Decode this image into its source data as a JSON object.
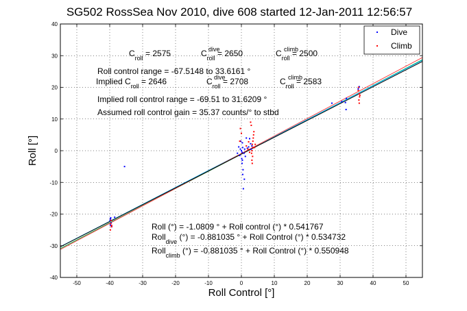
{
  "chart_data": {
    "type": "scatter",
    "title": "SG502 RossSea Nov 2010, dive 608 started 12-Jan-2011 12:56:57",
    "xlabel": "Roll Control [°]",
    "ylabel": "Roll [°]",
    "xlim": [
      -55,
      55
    ],
    "ylim": [
      -40,
      40
    ],
    "xticks": [
      -50,
      -40,
      -30,
      -20,
      -10,
      0,
      10,
      20,
      30,
      40,
      50
    ],
    "yticks": [
      -40,
      -30,
      -20,
      -10,
      0,
      10,
      20,
      30,
      40
    ],
    "grid": true,
    "legend": {
      "placement": "top-right",
      "entries": [
        {
          "label": "Dive",
          "color": "#0000ff"
        },
        {
          "label": "Climb",
          "color": "#ff0000"
        }
      ]
    },
    "series": [
      {
        "name": "Dive",
        "color": "#0000ff",
        "points": [
          [
            -39.8,
            -21.5
          ],
          [
            -39.6,
            -22.8
          ],
          [
            -39.8,
            -23.5
          ],
          [
            -39.4,
            -24.0
          ],
          [
            -39.9,
            -22.0
          ],
          [
            -39.7,
            -21.2
          ],
          [
            -38.5,
            -21.0
          ],
          [
            -35.5,
            -5.0
          ],
          [
            0.0,
            0.0
          ],
          [
            0.2,
            -0.5
          ],
          [
            -0.3,
            0.5
          ],
          [
            0.4,
            1.0
          ],
          [
            -0.5,
            -1.5
          ],
          [
            0.1,
            -2.5
          ],
          [
            0.3,
            2.5
          ],
          [
            0.2,
            -4.0
          ],
          [
            0.5,
            -6.0
          ],
          [
            0.6,
            -12.0
          ],
          [
            0.3,
            -3.0
          ],
          [
            -0.2,
            3.0
          ],
          [
            1.0,
            0.5
          ],
          [
            0.8,
            -0.8
          ],
          [
            1.5,
            4.0
          ],
          [
            1.8,
            0.8
          ],
          [
            2.2,
            1.2
          ],
          [
            2.8,
            2.2
          ],
          [
            3.0,
            0.5
          ],
          [
            3.2,
            1.5
          ],
          [
            2.5,
            3.8
          ],
          [
            -1.2,
            -0.8
          ],
          [
            -0.8,
            1.2
          ],
          [
            1.2,
            -1.8
          ],
          [
            0.4,
            -7.5
          ],
          [
            0.9,
            -9.0
          ],
          [
            31.8,
            13.0
          ],
          [
            31.6,
            15.2
          ],
          [
            31.9,
            16.5
          ],
          [
            30.5,
            15.5
          ],
          [
            27.5,
            15.0
          ],
          [
            35.5,
            19.5
          ],
          [
            35.8,
            20.2
          ]
        ]
      },
      {
        "name": "Climb",
        "color": "#ff0000",
        "points": [
          [
            -39.7,
            -23.0
          ],
          [
            -39.5,
            -24.0
          ],
          [
            -39.8,
            -25.0
          ],
          [
            -39.6,
            -22.0
          ],
          [
            -39.4,
            -23.6
          ],
          [
            3.2,
            0.0
          ],
          [
            3.4,
            1.0
          ],
          [
            3.3,
            2.0
          ],
          [
            3.1,
            -0.8
          ],
          [
            3.5,
            3.0
          ],
          [
            3.6,
            4.0
          ],
          [
            3.7,
            5.0
          ],
          [
            3.8,
            6.0
          ],
          [
            3.4,
            -1.8
          ],
          [
            3.2,
            -3.0
          ],
          [
            3.3,
            -4.0
          ],
          [
            3.0,
            8.0
          ],
          [
            2.8,
            9.0
          ],
          [
            2.5,
            -0.5
          ],
          [
            2.0,
            0.5
          ],
          [
            1.5,
            1.5
          ],
          [
            4.0,
            1.0
          ],
          [
            4.2,
            2.0
          ],
          [
            -0.5,
            3.0
          ],
          [
            -0.3,
            7.0
          ],
          [
            0.0,
            5.5
          ],
          [
            2.2,
            2.8
          ],
          [
            35.6,
            20.0
          ],
          [
            35.8,
            18.0
          ],
          [
            35.9,
            17.0
          ],
          [
            35.7,
            16.0
          ],
          [
            35.5,
            19.0
          ],
          [
            35.8,
            15.0
          ],
          [
            36.0,
            17.5
          ]
        ]
      }
    ],
    "fit_lines": [
      {
        "label": "Roll (°) = -1.0809 ° + Roll control (°) * 0.541767",
        "intercept": -1.0809,
        "slope": 0.541767,
        "color": "#00aa44"
      },
      {
        "label": "Roll_dive (°) = -0.881035 ° + Roll Control (°) * 0.534732",
        "intercept": -0.881035,
        "slope": 0.534732,
        "color": "#00b0ff"
      },
      {
        "label": "Roll_climb (°) = -0.881035 ° + Roll Control (°) * 0.550948",
        "intercept": -0.881035,
        "slope": 0.550948,
        "color": "#ff4040"
      },
      {
        "label": "",
        "intercept": -1.0809,
        "slope": 0.532,
        "color": "#000000"
      }
    ]
  },
  "annotations": {
    "c": {
      "base": "C",
      "sub": "roll",
      "value": " = 2575"
    },
    "c_dive": {
      "base": "C",
      "sub": "roll",
      "sup": "dive",
      "value": " = 2650"
    },
    "c_climb": {
      "base": "C",
      "sub": "roll",
      "sup": "climb",
      "value": " = 2500"
    },
    "range_line": "Roll control range = -67.5148 to 33.6161 °",
    "implied_prefix": "Implied C",
    "implied_sub": "roll",
    "implied_value": " = 2646",
    "implied_dive": {
      "base": "C",
      "sub": "roll",
      "sup": "dive",
      "value": " = 2708"
    },
    "implied_climb": {
      "base": "C",
      "sub": "roll",
      "sup": "climb",
      "value": " = 2583"
    },
    "implied_range_line": "Implied roll control range = -69.51 to 31.6209 °",
    "gain_line": "Assumed roll control gain = 35.37 counts/° to stbd",
    "eq1": "Roll (°) = -1.0809 ° + Roll control (°) * 0.541767",
    "eq2_base": "Roll",
    "eq2_sub": "dive",
    "eq2_rest": " (°) = -0.881035 ° + Roll Control (°) * 0.534732",
    "eq3_base": "Roll",
    "eq3_sub": "climb",
    "eq3_rest": " (°) = -0.881035 ° + Roll Control (°) * 0.550948"
  }
}
